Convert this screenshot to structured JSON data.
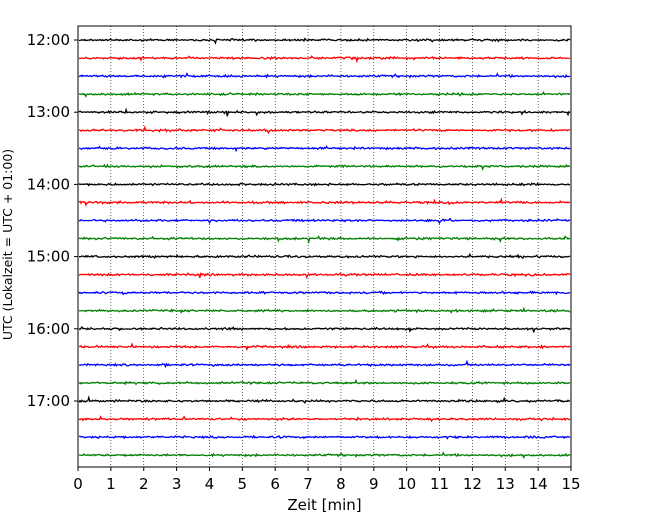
{
  "chart_data": {
    "type": "line",
    "title": "",
    "xlabel": "Zeit  [min]",
    "ylabel": "UTC (Lokalzeit = UTC + 01:00)",
    "xlim": [
      0,
      15
    ],
    "x_ticks": [
      "0",
      "1",
      "2",
      "3",
      "4",
      "5",
      "6",
      "7",
      "8",
      "9",
      "10",
      "11",
      "12",
      "13",
      "14",
      "15"
    ],
    "y_ticks": [
      "12:00",
      "13:00",
      "14:00",
      "15:00",
      "16:00",
      "17:00"
    ],
    "grid": "vertical dotted lines at each minute",
    "trace_interval_minutes": 15,
    "traces": [
      {
        "start": "12:00",
        "color": "#000000"
      },
      {
        "start": "12:15",
        "color": "#ff0000"
      },
      {
        "start": "12:30",
        "color": "#0000ff"
      },
      {
        "start": "12:45",
        "color": "#008000"
      },
      {
        "start": "13:00",
        "color": "#000000"
      },
      {
        "start": "13:15",
        "color": "#ff0000"
      },
      {
        "start": "13:30",
        "color": "#0000ff"
      },
      {
        "start": "13:45",
        "color": "#008000"
      },
      {
        "start": "14:00",
        "color": "#000000"
      },
      {
        "start": "14:15",
        "color": "#ff0000"
      },
      {
        "start": "14:30",
        "color": "#0000ff"
      },
      {
        "start": "14:45",
        "color": "#008000"
      },
      {
        "start": "15:00",
        "color": "#000000"
      },
      {
        "start": "15:15",
        "color": "#ff0000"
      },
      {
        "start": "15:30",
        "color": "#0000ff"
      },
      {
        "start": "15:45",
        "color": "#008000"
      },
      {
        "start": "16:00",
        "color": "#000000"
      },
      {
        "start": "16:15",
        "color": "#ff0000"
      },
      {
        "start": "16:30",
        "color": "#0000ff"
      },
      {
        "start": "16:45",
        "color": "#008000"
      },
      {
        "start": "17:00",
        "color": "#000000"
      },
      {
        "start": "17:15",
        "color": "#ff0000"
      },
      {
        "start": "17:30",
        "color": "#0000ff"
      },
      {
        "start": "17:45",
        "color": "#008000"
      }
    ]
  }
}
